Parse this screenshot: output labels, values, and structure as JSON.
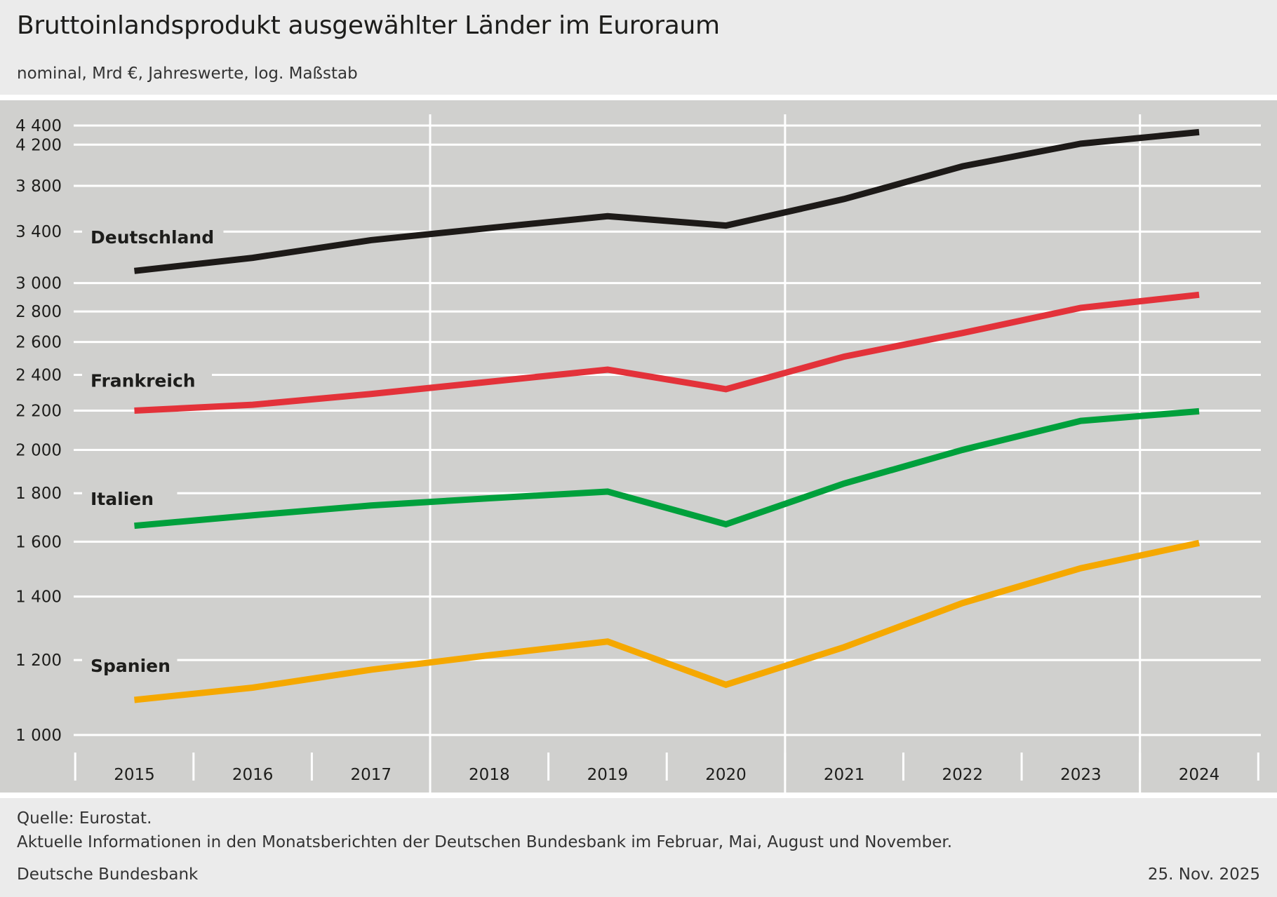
{
  "title": "Bruttoinlandsprodukt ausgewählter Länder im Euroraum",
  "subtitle": "nominal, Mrd €, Jahreswerte, log. Maßstab",
  "chart_data": {
    "type": "line",
    "yscale": "log",
    "ylim": [
      1000,
      4400
    ],
    "yticks": [
      1000,
      1200,
      1400,
      1600,
      1800,
      2000,
      2200,
      2400,
      2600,
      2800,
      3000,
      3400,
      3800,
      4200,
      4400
    ],
    "ytick_labels": [
      "1 000",
      "1 200",
      "1 400",
      "1 600",
      "1 800",
      "2 000",
      "2 200",
      "2 400",
      "2 600",
      "2 800",
      "3 000",
      "3 400",
      "3 800",
      "4 200",
      "4 400"
    ],
    "x": [
      "2015",
      "2016",
      "2017",
      "2018",
      "2019",
      "2020",
      "2021",
      "2022",
      "2023",
      "2024"
    ],
    "grid": true,
    "legend": "inline labels",
    "series": [
      {
        "name": "Deutschland",
        "color": "#1d1a18",
        "values": [
          3090,
          3190,
          3330,
          3430,
          3530,
          3450,
          3680,
          3985,
          4210,
          4330
        ]
      },
      {
        "name": "Frankreich",
        "color": "#e3323a",
        "values": [
          2200,
          2232,
          2291,
          2360,
          2431,
          2318,
          2509,
          2657,
          2825,
          2916
        ]
      },
      {
        "name": "Italien",
        "color": "#00a03c",
        "values": [
          1663,
          1706,
          1747,
          1778,
          1807,
          1669,
          1843,
          2000,
          2146,
          2197
        ]
      },
      {
        "name": "Spanien",
        "color": "#f5a800",
        "values": [
          1089,
          1122,
          1172,
          1214,
          1255,
          1130,
          1238,
          1378,
          1500,
          1595
        ]
      }
    ]
  },
  "footer": {
    "source": "Quelle: Eurostat.",
    "note": "Aktuelle Informationen in den Monatsberichten der Deutschen Bundesbank im Februar, Mai, August und November.",
    "publisher": "Deutsche Bundesbank",
    "date": "25. Nov. 2025"
  }
}
